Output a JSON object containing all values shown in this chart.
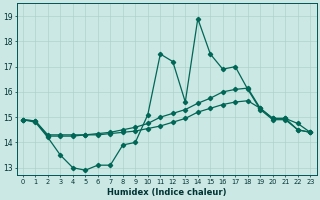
{
  "xlabel": "Humidex (Indice chaleur)",
  "bg_color": "#cce8e4",
  "grid_color": "#aad4cc",
  "line_color": "#006655",
  "xlim": [
    -0.5,
    23.5
  ],
  "ylim": [
    12.7,
    19.5
  ],
  "xticks": [
    0,
    1,
    2,
    3,
    4,
    5,
    6,
    7,
    8,
    9,
    10,
    11,
    12,
    13,
    14,
    15,
    16,
    17,
    18,
    19,
    20,
    21,
    22,
    23
  ],
  "yticks": [
    13,
    14,
    15,
    16,
    17,
    18,
    19
  ],
  "line1_x": [
    0,
    1,
    2,
    3,
    4,
    5,
    6,
    7,
    8,
    9,
    10,
    11,
    12,
    13,
    14,
    15,
    16,
    17,
    18,
    19,
    20,
    21,
    22,
    23
  ],
  "line1_y": [
    14.9,
    14.8,
    14.2,
    13.5,
    13.0,
    12.9,
    13.1,
    13.1,
    13.9,
    14.0,
    15.1,
    17.5,
    17.2,
    15.6,
    18.9,
    17.5,
    16.9,
    17.0,
    16.1,
    15.3,
    14.9,
    14.9,
    14.5,
    14.4
  ],
  "line2_x": [
    0,
    1,
    2,
    3,
    4,
    5,
    6,
    7,
    8,
    9,
    10,
    11,
    12,
    13,
    14,
    15,
    16,
    17,
    18,
    19,
    20,
    21,
    22,
    23
  ],
  "line2_y": [
    14.9,
    14.85,
    14.3,
    14.3,
    14.3,
    14.3,
    14.35,
    14.4,
    14.5,
    14.6,
    14.75,
    15.0,
    15.15,
    15.3,
    15.55,
    15.75,
    16.0,
    16.1,
    16.15,
    15.35,
    14.95,
    14.95,
    14.5,
    14.4
  ],
  "line3_x": [
    0,
    1,
    2,
    3,
    4,
    5,
    6,
    7,
    8,
    9,
    10,
    11,
    12,
    13,
    14,
    15,
    16,
    17,
    18,
    19,
    20,
    21,
    22,
    23
  ],
  "line3_y": [
    14.9,
    14.85,
    14.25,
    14.25,
    14.25,
    14.3,
    14.3,
    14.35,
    14.4,
    14.45,
    14.55,
    14.65,
    14.8,
    14.95,
    15.2,
    15.35,
    15.5,
    15.6,
    15.65,
    15.35,
    14.95,
    14.95,
    14.75,
    14.4
  ]
}
